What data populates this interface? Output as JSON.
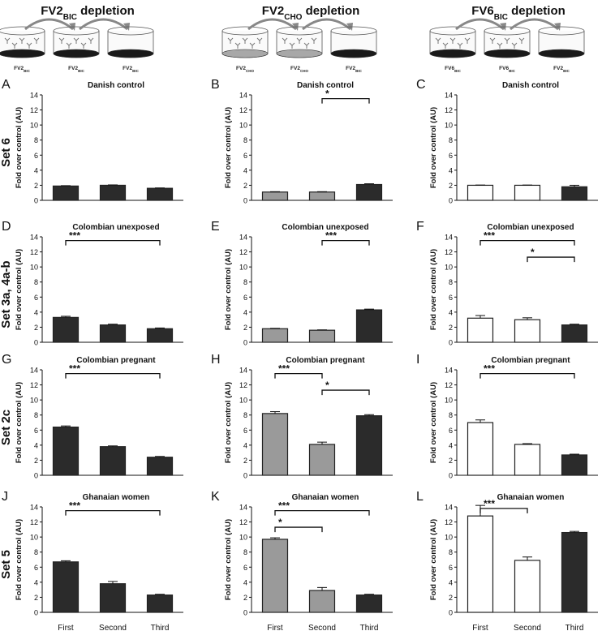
{
  "columns": [
    {
      "title": "FV2",
      "title_sub": "BIC",
      "title_suffix": " depletion",
      "wells": [
        {
          "label": "FV2",
          "sub": "BIC"
        },
        {
          "label": "FV2",
          "sub": "BIC"
        },
        {
          "label": "FV2",
          "sub": "BIC"
        }
      ]
    },
    {
      "title": "FV2",
      "title_sub": "CHO",
      "title_suffix": " depletion",
      "wells": [
        {
          "label": "FV2",
          "sub": "CHO"
        },
        {
          "label": "FV2",
          "sub": "CHO"
        },
        {
          "label": "FV2",
          "sub": "BIC"
        }
      ]
    },
    {
      "title": "FV6",
      "title_sub": "BIC",
      "title_suffix": " depletion",
      "wells": [
        {
          "label": "FV6",
          "sub": "BIC"
        },
        {
          "label": "FV6",
          "sub": "BIC"
        },
        {
          "label": "FV2",
          "sub": "BIC"
        }
      ]
    }
  ],
  "rows": [
    {
      "label": "Set 6"
    },
    {
      "label": "Set 3a, 4a-b"
    },
    {
      "label": "Set 2c"
    },
    {
      "label": "Set 5"
    }
  ],
  "colors": {
    "dark": "#2b2b2b",
    "grey": "#9a9a9a",
    "white": "#ffffff",
    "edge": "#222222"
  },
  "chart_data": [
    {
      "letter": "A",
      "type": "bar",
      "title": "Danish control",
      "ylabel": "Fold over control (AU)",
      "ylim": [
        0,
        14
      ],
      "yticks": [
        0,
        2,
        4,
        6,
        8,
        10,
        12,
        14
      ],
      "categories": [
        "First",
        "Second",
        "Third"
      ],
      "values": [
        1.9,
        2.0,
        1.6
      ],
      "errors": [
        0.05,
        0.05,
        0.05
      ],
      "fills": [
        "dark",
        "dark",
        "dark"
      ],
      "sig": []
    },
    {
      "letter": "B",
      "type": "bar",
      "title": "Danish control",
      "ylabel": "Fold over control (AU)",
      "ylim": [
        0,
        14
      ],
      "yticks": [
        0,
        2,
        4,
        6,
        8,
        10,
        12,
        14
      ],
      "categories": [
        "First",
        "Second",
        "Third"
      ],
      "values": [
        1.1,
        1.1,
        2.1
      ],
      "errors": [
        0.05,
        0.05,
        0.1
      ],
      "fills": [
        "grey",
        "grey",
        "dark"
      ],
      "sig": [
        {
          "from": 1,
          "to": 2,
          "y": 13.5,
          "label": "*"
        }
      ]
    },
    {
      "letter": "C",
      "type": "bar",
      "title": "Danish control",
      "ylabel": "Fold over control (AU)",
      "ylim": [
        0,
        14
      ],
      "yticks": [
        0,
        2,
        4,
        6,
        8,
        10,
        12,
        14
      ],
      "categories": [
        "First",
        "Second",
        "Third"
      ],
      "values": [
        2.0,
        2.0,
        1.8
      ],
      "errors": [
        0.03,
        0.03,
        0.2
      ],
      "fills": [
        "white",
        "white",
        "dark"
      ],
      "sig": []
    },
    {
      "letter": "D",
      "type": "bar",
      "title": "Colombian unexposed",
      "ylabel": "Fold over control (AU)",
      "ylim": [
        0,
        14
      ],
      "yticks": [
        0,
        2,
        4,
        6,
        8,
        10,
        12,
        14
      ],
      "categories": [
        "First",
        "Second",
        "Third"
      ],
      "values": [
        3.3,
        2.3,
        1.8
      ],
      "errors": [
        0.15,
        0.1,
        0.1
      ],
      "fills": [
        "dark",
        "dark",
        "dark"
      ],
      "sig": [
        {
          "from": 0,
          "to": 2,
          "y": 13.5,
          "label": "***"
        }
      ]
    },
    {
      "letter": "E",
      "type": "bar",
      "title": "Colombian unexposed",
      "ylabel": "Fold over control (AU)",
      "ylim": [
        0,
        14
      ],
      "yticks": [
        0,
        2,
        4,
        6,
        8,
        10,
        12,
        14
      ],
      "categories": [
        "First",
        "Second",
        "Third"
      ],
      "values": [
        1.8,
        1.6,
        4.3
      ],
      "errors": [
        0.05,
        0.05,
        0.1
      ],
      "fills": [
        "grey",
        "grey",
        "dark"
      ],
      "sig": [
        {
          "from": 1,
          "to": 2,
          "y": 13.5,
          "label": "***"
        }
      ]
    },
    {
      "letter": "F",
      "type": "bar",
      "title": "Colombian unexposed",
      "ylabel": "Fold over control (AU)",
      "ylim": [
        0,
        14
      ],
      "yticks": [
        0,
        2,
        4,
        6,
        8,
        10,
        12,
        14
      ],
      "categories": [
        "First",
        "Second",
        "Third"
      ],
      "values": [
        3.2,
        3.0,
        2.3
      ],
      "errors": [
        0.35,
        0.25,
        0.1
      ],
      "fills": [
        "white",
        "white",
        "dark"
      ],
      "sig": [
        {
          "from": 0,
          "to": 2,
          "y": 13.5,
          "label": "***"
        },
        {
          "from": 1,
          "to": 2,
          "y": 11.3,
          "label": "*"
        }
      ]
    },
    {
      "letter": "G",
      "type": "bar",
      "title": "Colombian pregnant",
      "ylabel": "Fold over control (AU)",
      "ylim": [
        0,
        14
      ],
      "yticks": [
        0,
        2,
        4,
        6,
        8,
        10,
        12,
        14
      ],
      "categories": [
        "First",
        "Second",
        "Third"
      ],
      "values": [
        6.4,
        3.8,
        2.4
      ],
      "errors": [
        0.15,
        0.1,
        0.1
      ],
      "fills": [
        "dark",
        "dark",
        "dark"
      ],
      "sig": [
        {
          "from": 0,
          "to": 2,
          "y": 13.5,
          "label": "***"
        }
      ]
    },
    {
      "letter": "H",
      "type": "bar",
      "title": "Colombian pregnant",
      "ylabel": "Fold over control (AU)",
      "ylim": [
        0,
        14
      ],
      "yticks": [
        0,
        2,
        4,
        6,
        8,
        10,
        12,
        14
      ],
      "categories": [
        "First",
        "Second",
        "Third"
      ],
      "values": [
        8.2,
        4.1,
        7.9
      ],
      "errors": [
        0.25,
        0.3,
        0.15
      ],
      "fills": [
        "grey",
        "grey",
        "dark"
      ],
      "sig": [
        {
          "from": 0,
          "to": 1,
          "y": 13.5,
          "label": "***"
        },
        {
          "from": 1,
          "to": 2,
          "y": 11.3,
          "label": "*"
        }
      ]
    },
    {
      "letter": "I",
      "type": "bar",
      "title": "Colombian pregnant",
      "ylabel": "Fold over control (AU)",
      "ylim": [
        0,
        14
      ],
      "yticks": [
        0,
        2,
        4,
        6,
        8,
        10,
        12,
        14
      ],
      "categories": [
        "First",
        "Second",
        "Third"
      ],
      "values": [
        7.0,
        4.1,
        2.7
      ],
      "errors": [
        0.35,
        0.1,
        0.1
      ],
      "fills": [
        "white",
        "white",
        "dark"
      ],
      "sig": [
        {
          "from": 0,
          "to": 2,
          "y": 13.5,
          "label": "***"
        }
      ]
    },
    {
      "letter": "J",
      "type": "bar",
      "title": "Ghanaian women",
      "ylabel": "Fold over control (AU)",
      "ylim": [
        0,
        14
      ],
      "yticks": [
        0,
        2,
        4,
        6,
        8,
        10,
        12,
        14
      ],
      "categories": [
        "First",
        "Second",
        "Third"
      ],
      "values": [
        6.7,
        3.8,
        2.3
      ],
      "errors": [
        0.15,
        0.3,
        0.1
      ],
      "fills": [
        "dark",
        "dark",
        "dark"
      ],
      "sig": [
        {
          "from": 0,
          "to": 2,
          "y": 13.5,
          "label": "***"
        }
      ]
    },
    {
      "letter": "K",
      "type": "bar",
      "title": "Ghanaian women",
      "ylabel": "Fold over control (AU)",
      "ylim": [
        0,
        14
      ],
      "yticks": [
        0,
        2,
        4,
        6,
        8,
        10,
        12,
        14
      ],
      "categories": [
        "First",
        "Second",
        "Third"
      ],
      "values": [
        9.7,
        2.9,
        2.3
      ],
      "errors": [
        0.2,
        0.4,
        0.1
      ],
      "fills": [
        "grey",
        "grey",
        "dark"
      ],
      "sig": [
        {
          "from": 0,
          "to": 2,
          "y": 13.5,
          "label": "***"
        },
        {
          "from": 0,
          "to": 1,
          "y": 11.3,
          "label": "*"
        }
      ]
    },
    {
      "letter": "L",
      "type": "bar",
      "title": "Ghanaian women",
      "ylabel": "Fold over control (AU)",
      "ylim": [
        0,
        14
      ],
      "yticks": [
        0,
        2,
        4,
        6,
        8,
        10,
        12,
        14
      ],
      "categories": [
        "First",
        "Second",
        "Third"
      ],
      "values": [
        12.8,
        6.9,
        10.6
      ],
      "errors": [
        1.4,
        0.45,
        0.15
      ],
      "fills": [
        "white",
        "white",
        "dark"
      ],
      "sig": [
        {
          "from": 0,
          "to": 1,
          "y": 13.8,
          "label": "***"
        }
      ]
    }
  ]
}
